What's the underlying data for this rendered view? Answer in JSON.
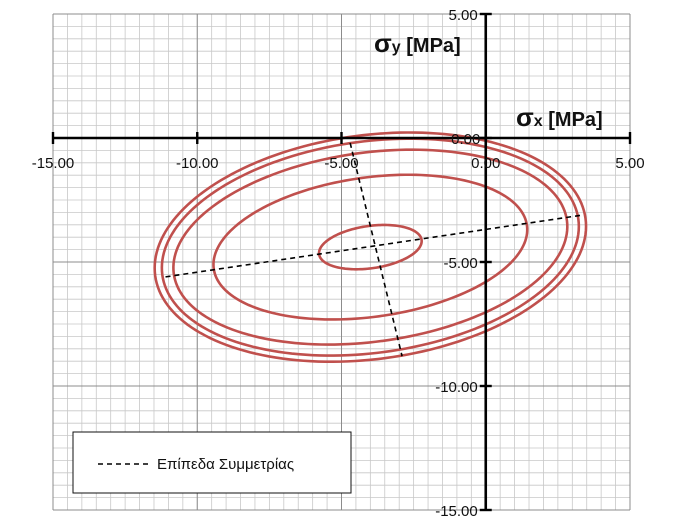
{
  "chart_data": {
    "type": "scatter",
    "xlim": [
      -15,
      5
    ],
    "ylim": [
      -15,
      5
    ],
    "grid": true,
    "minor_grid_step": 0.5,
    "major_tick_step": 5,
    "x_ticks": [
      "-15.00",
      "-10.00",
      "-5.00",
      "0.00",
      "5.00"
    ],
    "y_ticks": [
      "5.00",
      "0.00",
      "-5.00",
      "-10.00",
      "-15.00"
    ],
    "x_axis_title": {
      "main": "σ",
      "sub": "x",
      "unit": " [MPa]"
    },
    "y_axis_title": {
      "main": "σ",
      "sub": "y",
      "unit": " [MPa]"
    },
    "ellipse_color": "#c0504d",
    "ellipse_center": [
      -4.0,
      -4.4
    ],
    "ellipse_angle_deg": 10,
    "ellipses": [
      {
        "a": 1.8,
        "b": 0.85
      },
      {
        "a": 5.5,
        "b": 2.8
      },
      {
        "a": 6.9,
        "b": 3.8
      },
      {
        "a": 7.3,
        "b": 4.25
      },
      {
        "a": 7.55,
        "b": 4.5
      }
    ],
    "symmetry_lines": [
      {
        "x": [
          -11.1,
          3.4
        ],
        "y": [
          -5.6,
          -3.1
        ]
      },
      {
        "x": [
          -4.7,
          -2.9
        ],
        "y": [
          -0.2,
          -8.8
        ]
      }
    ],
    "legend": {
      "position": "bottom-left",
      "label": "Επίπεδα Συμμετρίας"
    }
  }
}
